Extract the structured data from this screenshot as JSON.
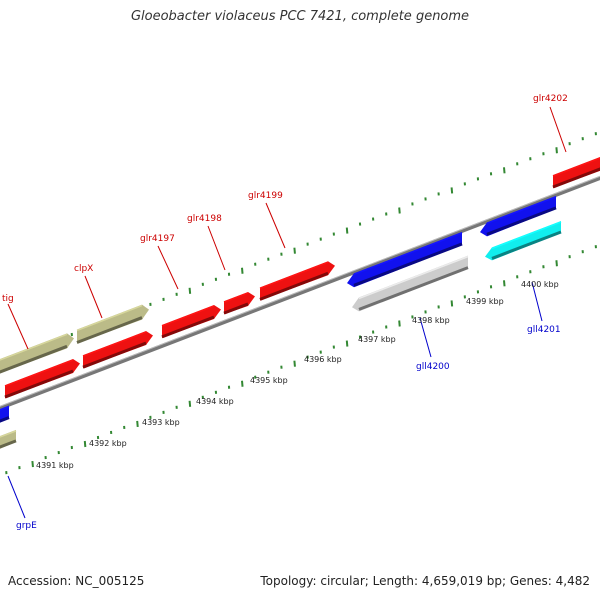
{
  "title": "Gloeobacter violaceus PCC 7421, complete genome",
  "footer": {
    "accession": "Accession: NC_005125",
    "summary": "Topology: circular; Length: 4,659,019 bp; Genes: 4,482"
  },
  "colors": {
    "forward_label": "#cc0000",
    "reverse_label": "#0000cc",
    "backbone": "#888888",
    "ticks": "#338833",
    "red_gene": "#ee1111",
    "blue_gene": "#1111ee",
    "olive_gene": "#bbbb88",
    "cyan_gene": "#11eeee",
    "gray_gene": "#cccccc"
  },
  "ticks": [
    {
      "kbp": 4391,
      "label": "4391 kbp"
    },
    {
      "kbp": 4392,
      "label": "4392 kbp"
    },
    {
      "kbp": 4393,
      "label": "4393 kbp"
    },
    {
      "kbp": 4394,
      "label": "4394 kbp"
    },
    {
      "kbp": 4395,
      "label": "4395 kbp"
    },
    {
      "kbp": 4396,
      "label": "4396 kbp"
    },
    {
      "kbp": 4397,
      "label": "4397 kbp"
    },
    {
      "kbp": 4398,
      "label": "4398 kbp"
    },
    {
      "kbp": 4399,
      "label": "4399 kbp"
    },
    {
      "kbp": 4400,
      "label": "4400 kbp"
    }
  ],
  "gene_labels": [
    {
      "name": "tig",
      "strand": "forward"
    },
    {
      "name": "clpX",
      "strand": "forward"
    },
    {
      "name": "glr4197",
      "strand": "forward"
    },
    {
      "name": "glr4198",
      "strand": "forward"
    },
    {
      "name": "glr4199",
      "strand": "forward"
    },
    {
      "name": "glr4202",
      "strand": "forward"
    },
    {
      "name": "grpE",
      "strand": "reverse"
    },
    {
      "name": "gll4200",
      "strand": "reverse"
    },
    {
      "name": "gll4201",
      "strand": "reverse"
    }
  ],
  "features": [
    {
      "id": "fwd-olive-1",
      "color": "olive",
      "strand": "forward",
      "direction": "plus"
    },
    {
      "id": "fwd-olive-2",
      "color": "olive",
      "strand": "forward",
      "direction": "plus"
    },
    {
      "id": "fwd-red-1",
      "color": "red",
      "strand": "forward",
      "direction": "plus"
    },
    {
      "id": "fwd-red-2",
      "color": "red",
      "strand": "forward",
      "direction": "plus"
    },
    {
      "id": "fwd-red-3",
      "color": "red",
      "strand": "forward",
      "direction": "plus"
    },
    {
      "id": "fwd-red-4",
      "color": "red",
      "strand": "forward",
      "direction": "plus"
    },
    {
      "id": "fwd-red-5",
      "color": "red",
      "strand": "forward",
      "direction": "plus"
    },
    {
      "id": "fwd-red-6",
      "color": "red",
      "strand": "forward",
      "direction": "plus"
    },
    {
      "id": "rev-blue-1",
      "color": "blue",
      "strand": "reverse",
      "direction": "minus"
    },
    {
      "id": "rev-blue-2",
      "color": "blue",
      "strand": "reverse",
      "direction": "minus"
    },
    {
      "id": "rev-blue-3",
      "color": "blue",
      "strand": "reverse",
      "direction": "minus"
    },
    {
      "id": "rev-gray-1",
      "color": "gray",
      "strand": "reverse",
      "direction": "minus"
    },
    {
      "id": "rev-cyan-1",
      "color": "cyan",
      "strand": "reverse",
      "direction": "minus"
    },
    {
      "id": "rev-olive-1",
      "color": "olive",
      "strand": "reverse",
      "direction": "minus"
    }
  ]
}
